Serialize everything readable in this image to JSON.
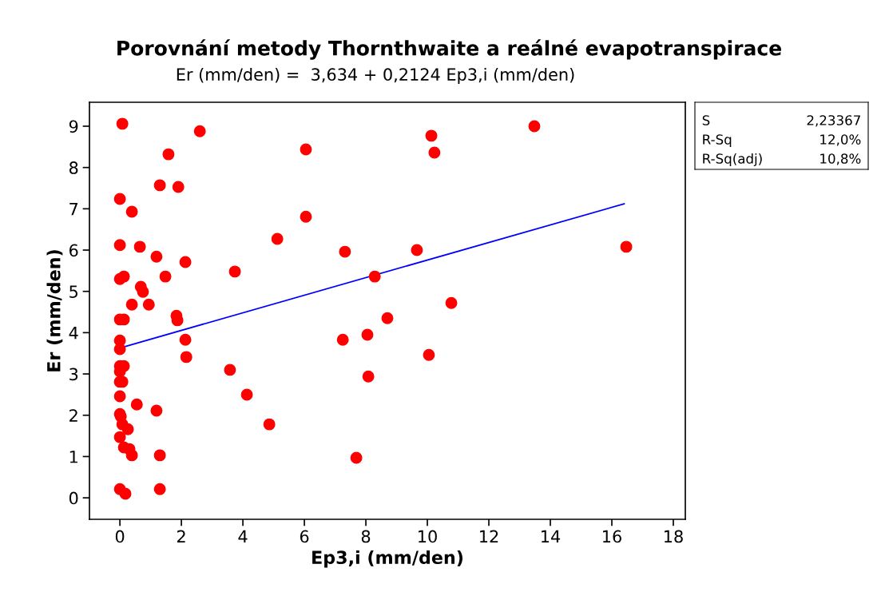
{
  "chart_data": {
    "type": "scatter",
    "title": "Porovnání metody Thornthwaite a reálné evapotranspirace",
    "subtitle": "Er (mm/den) =  3,634 + 0,2124 Ep3,i (mm/den)",
    "xlabel": "Ep3,i (mm/den)",
    "ylabel": "Er (mm/den)",
    "xlim": [
      -0.99,
      18.39
    ],
    "ylim": [
      -0.52,
      9.58
    ],
    "xticks": [
      0,
      2,
      4,
      6,
      8,
      10,
      12,
      14,
      16,
      18
    ],
    "yticks": [
      0,
      1,
      2,
      3,
      4,
      5,
      6,
      7,
      8,
      9
    ],
    "grid": false,
    "legend": false,
    "marker": "circle",
    "annotations": [
      "S",
      "2,23367",
      "R-Sq",
      "12,0%",
      "R-Sq(adj)",
      "10,8%"
    ],
    "series": [
      {
        "color": "#ff0000",
        "x": [
          0.08,
          2.6,
          1.58,
          10.23,
          10.13,
          13.48,
          6.05,
          0,
          1.3,
          1.9,
          0.39,
          0,
          0.65,
          6.05,
          5.12,
          7.32,
          9.66,
          16.47,
          1.19,
          2.13,
          0,
          0.13,
          1.48,
          3.74,
          8.29,
          0.68,
          0.75,
          0.94,
          0.39,
          1.84,
          1.87,
          10.78,
          8.7,
          0,
          0.13,
          0,
          0,
          2.13,
          7.25,
          8.05,
          2.16,
          10.05,
          3.58,
          0,
          0.13,
          0,
          0,
          0.08,
          8.08,
          0,
          4.13,
          0.55,
          1.19,
          4.86,
          0,
          0.03,
          0.08,
          0.26,
          0,
          0.13,
          0.31,
          0.39,
          1.3,
          7.69,
          0,
          0.18,
          1.3
        ],
        "values": [
          9.06,
          8.88,
          8.32,
          8.36,
          8.77,
          9.0,
          8.44,
          7.24,
          7.57,
          7.53,
          6.93,
          6.12,
          6.08,
          6.81,
          6.27,
          5.96,
          6.0,
          6.08,
          5.84,
          5.71,
          5.3,
          5.36,
          5.36,
          5.48,
          5.36,
          5.11,
          4.99,
          4.68,
          4.68,
          4.41,
          4.3,
          4.72,
          4.35,
          4.32,
          4.32,
          3.81,
          3.6,
          3.83,
          3.83,
          3.95,
          3.41,
          3.46,
          3.1,
          3.19,
          3.19,
          3.06,
          2.81,
          2.81,
          2.94,
          2.46,
          2.5,
          2.26,
          2.11,
          1.78,
          2.03,
          1.97,
          1.78,
          1.66,
          1.47,
          1.22,
          1.18,
          1.03,
          1.03,
          0.97,
          0.21,
          0.1,
          0.21
        ]
      },
      {
        "type": "line",
        "marker": "none",
        "color": "#0000ff",
        "x": [
          0,
          16.4
        ],
        "values": [
          3.63,
          7.12
        ]
      }
    ]
  }
}
